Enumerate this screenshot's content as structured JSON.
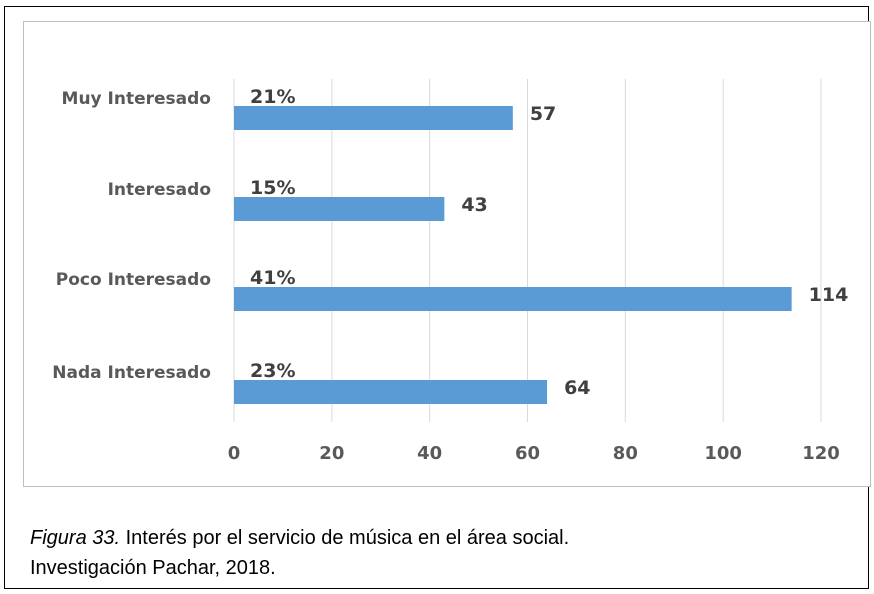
{
  "chart_data": {
    "type": "bar",
    "orientation": "horizontal",
    "categories": [
      "Muy Interesado",
      "Interesado",
      "Poco Interesado",
      "Nada Interesado"
    ],
    "values": [
      57,
      43,
      114,
      64
    ],
    "percent_labels": [
      "21%",
      "15%",
      "41%",
      "23%"
    ],
    "xlim": [
      0,
      120
    ],
    "xticks": [
      "0",
      "20",
      "40",
      "60",
      "80",
      "100",
      "120"
    ],
    "grid": true,
    "bar_color": "#5b9bd5",
    "title": "",
    "xlabel": "",
    "ylabel": ""
  },
  "caption": {
    "figure_number": "Figura 33.",
    "text": " Interés por el servicio de música en el área social.",
    "line2": "Investigación Pachar, 2018."
  }
}
